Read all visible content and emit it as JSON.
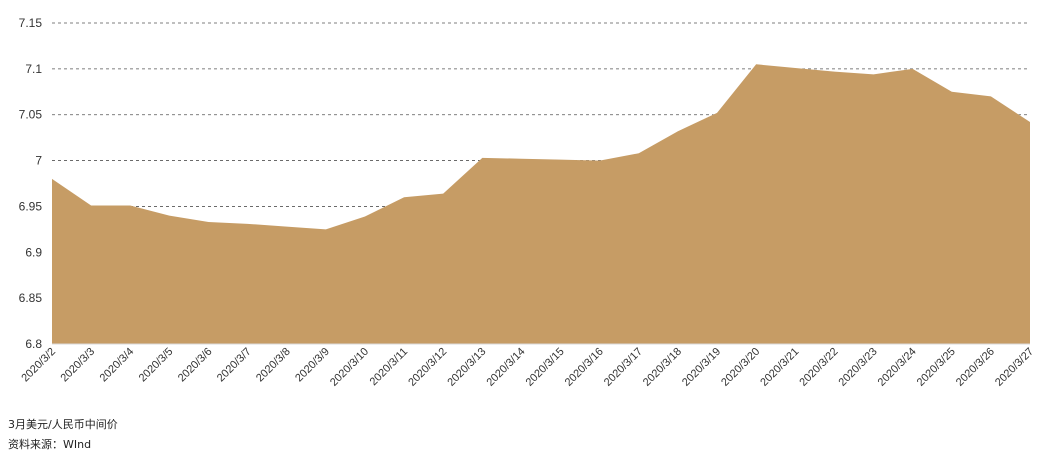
{
  "chart_data": {
    "type": "area",
    "x": [
      "2020/3/2",
      "2020/3/3",
      "2020/3/4",
      "2020/3/5",
      "2020/3/6",
      "2020/3/7",
      "2020/3/8",
      "2020/3/9",
      "2020/3/10",
      "2020/3/11",
      "2020/3/12",
      "2020/3/13",
      "2020/3/14",
      "2020/3/15",
      "2020/3/16",
      "2020/3/17",
      "2020/3/18",
      "2020/3/19",
      "2020/3/20",
      "2020/3/21",
      "2020/3/22",
      "2020/3/23",
      "2020/3/24",
      "2020/3/25",
      "2020/3/26",
      "2020/3/27"
    ],
    "series": [
      {
        "values": [
          6.98,
          6.951,
          6.951,
          6.94,
          6.933,
          6.931,
          6.928,
          6.925,
          6.939,
          6.96,
          6.964,
          7.003,
          7.002,
          7.001,
          7.0,
          7.008,
          7.032,
          7.052,
          7.105,
          7.101,
          7.097,
          7.094,
          7.1,
          7.075,
          7.07,
          7.042
        ]
      }
    ],
    "ylim": [
      6.8,
      7.15
    ],
    "yticks": [
      "7.15",
      "7.1",
      "7.05",
      "7",
      "6.95",
      "6.9",
      "6.85",
      "6.8"
    ],
    "grid": "horizontal-dashed",
    "fill_color": "#C69C65",
    "legend": "none"
  },
  "captions": {
    "title": "3月美元/人民币中间价",
    "source": "资料来源：WInd"
  }
}
